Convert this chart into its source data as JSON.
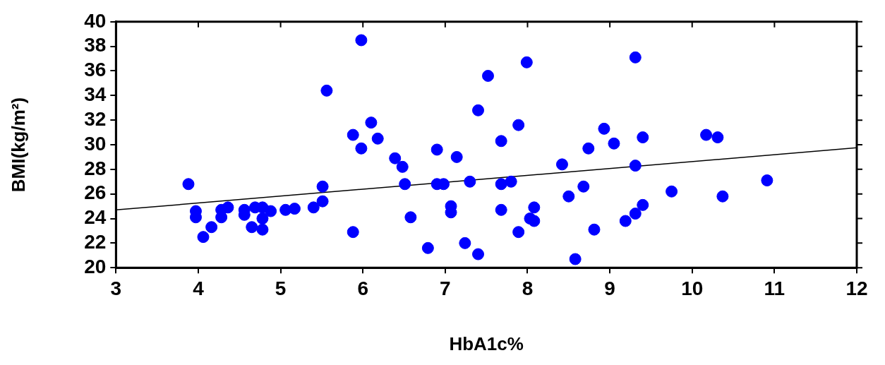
{
  "chart_data": {
    "type": "scatter",
    "xlabel": "HbA1c%",
    "ylabel": "BMI(kg/m²)",
    "xlim": [
      3,
      12
    ],
    "xticks": [
      3,
      4,
      5,
      6,
      7,
      8,
      9,
      10,
      11,
      12
    ],
    "ylim": [
      20,
      40
    ],
    "yticks": [
      20,
      22,
      24,
      26,
      28,
      30,
      32,
      34,
      36,
      38,
      40
    ],
    "grid": false,
    "legend": false,
    "marker": "circle",
    "series": [
      {
        "type": "scatter",
        "color": "#0000ff",
        "x": [
          3.88,
          3.97,
          3.97,
          4.16,
          4.06,
          4.28,
          4.28,
          4.36,
          4.56,
          4.56,
          4.65,
          4.69,
          4.78,
          4.78,
          4.78,
          4.88,
          5.06,
          5.17,
          5.4,
          5.51,
          5.51,
          5.56,
          5.88,
          5.88,
          5.98,
          5.98,
          6.1,
          6.18,
          6.39,
          6.48,
          6.51,
          6.58,
          6.79,
          6.9,
          6.9,
          6.98,
          7.07,
          7.07,
          7.14,
          7.24,
          7.3,
          7.4,
          7.4,
          7.52,
          7.68,
          7.68,
          7.68,
          7.8,
          7.89,
          7.89,
          7.99,
          8.03,
          8.08,
          8.08,
          8.42,
          8.5,
          8.58,
          8.68,
          8.74,
          8.81,
          8.93,
          9.05,
          9.31,
          9.4,
          9.31,
          9.75,
          10.17,
          10.31,
          10.37,
          10.91,
          9.4,
          9.31,
          9.19
        ],
        "values": [
          26.8,
          24.6,
          24.1,
          23.3,
          22.5,
          24.7,
          24.1,
          24.9,
          24.7,
          24.3,
          23.3,
          24.9,
          24.9,
          24.0,
          23.1,
          24.6,
          24.7,
          24.8,
          24.9,
          25.4,
          26.6,
          34.4,
          22.9,
          30.8,
          29.7,
          38.5,
          31.8,
          30.5,
          28.9,
          28.2,
          26.8,
          24.1,
          21.6,
          29.6,
          26.8,
          26.8,
          25.0,
          24.5,
          29.0,
          22.0,
          27.0,
          32.8,
          21.1,
          35.6,
          30.3,
          26.8,
          24.7,
          27.0,
          31.6,
          22.9,
          36.7,
          24.0,
          23.8,
          24.9,
          28.4,
          25.8,
          20.7,
          26.6,
          29.7,
          23.1,
          31.3,
          30.1,
          37.1,
          30.6,
          28.3,
          26.2,
          30.8,
          30.6,
          25.8,
          27.1,
          25.1,
          24.4,
          23.8
        ]
      },
      {
        "type": "line",
        "color": "#000000",
        "marker": "none",
        "line_style": "solid",
        "x": [
          3,
          12
        ],
        "values": [
          24.7,
          29.75
        ]
      }
    ]
  }
}
